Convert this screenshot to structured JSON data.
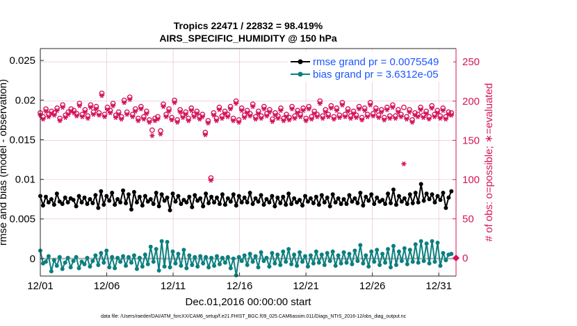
{
  "chart_data": {
    "type": "line",
    "title": "Tropics 22471 / 22832 = 98.419%",
    "subtitle": "AIRS_SPECIFIC_HUMIDITY @ 150 hPa",
    "xlabel": "Dec.01,2016 00:00:00 start",
    "ylabel": "rmse and bias (model - observation)",
    "y2label": "# of obs: o=possible; ∗=evaluated",
    "footnote": "data file: /Users/raeder/DAI/ATM_forcXX/CAM6_setup/f.e21.FHIST_BGC.f09_025.CAM6assim.011/Diags_NTrS_2016-12/obs_diag_output.nc",
    "xlim": [
      1,
      32.3
    ],
    "ylim": [
      -0.0022,
      0.0265
    ],
    "y2lim": [
      -23,
      267
    ],
    "x_ticks": [
      1,
      6,
      11,
      16,
      21,
      26,
      31
    ],
    "x_ticklabels": [
      "12/01",
      "12/06",
      "12/11",
      "12/16",
      "12/21",
      "12/26",
      "12/31"
    ],
    "y_ticks": [
      0,
      0.005,
      0.01,
      0.015,
      0.02,
      0.025
    ],
    "y_ticklabels": [
      "0",
      "0.005",
      "0.01",
      "0.015",
      "0.02",
      "0.025"
    ],
    "y2_ticks": [
      0,
      50,
      100,
      150,
      200,
      250
    ],
    "y2_ticklabels": [
      "0",
      "50",
      "100",
      "150",
      "200",
      "250"
    ],
    "grid": true,
    "legend_position": "top-right",
    "colors": {
      "rmse": "#000000",
      "bias": "#0b7f7f",
      "counts": "#d4145a",
      "zero_line": "#b4b4b4",
      "legend_text": "#1a56ff",
      "grid": "#e6b8c6"
    },
    "series": [
      {
        "name": "rmse grand pr = 0.0075549",
        "values": [
          0.0079,
          0.0067,
          0.0078,
          0.0071,
          0.0075,
          0.0068,
          0.0082,
          0.0072,
          0.0069,
          0.0077,
          0.0071,
          0.0076,
          0.0074,
          0.0066,
          0.0079,
          0.0071,
          0.0077,
          0.0069,
          0.0075,
          0.007,
          0.008,
          0.0064,
          0.0085,
          0.0068,
          0.0079,
          0.0073,
          0.0083,
          0.0068,
          0.0075,
          0.0071,
          0.0086,
          0.007,
          0.0081,
          0.0062,
          0.0084,
          0.0071,
          0.0078,
          0.0067,
          0.0079,
          0.0072,
          0.0075,
          0.0069,
          0.0083,
          0.0066,
          0.0081,
          0.0073,
          0.0077,
          0.0061,
          0.0082,
          0.0072,
          0.0079,
          0.0069,
          0.0074,
          0.0071,
          0.0078,
          0.0065,
          0.008,
          0.0073,
          0.0076,
          0.0066,
          0.0082,
          0.007,
          0.0078,
          0.0071,
          0.0077,
          0.0069,
          0.0081,
          0.0068,
          0.0076,
          0.0072,
          0.0081,
          0.0067,
          0.0079,
          0.0071,
          0.0077,
          0.0071,
          0.0083,
          0.0069,
          0.0076,
          0.0072,
          0.008,
          0.0068,
          0.0075,
          0.0071,
          0.0079,
          0.0066,
          0.0077,
          0.007,
          0.0078,
          0.0068,
          0.0082,
          0.0069,
          0.0076,
          0.0071,
          0.0074,
          0.0067,
          0.0079,
          0.0072,
          0.0076,
          0.007,
          0.0078,
          0.0068,
          0.008,
          0.0071,
          0.0077,
          0.0066,
          0.0081,
          0.0071,
          0.0076,
          0.0069,
          0.0075,
          0.0069,
          0.008,
          0.0072,
          0.0076,
          0.007,
          0.0083,
          0.0067,
          0.0078,
          0.0073,
          0.0081,
          0.0069,
          0.0077,
          0.0072,
          0.0074,
          0.0069,
          0.0082,
          0.007,
          0.0087,
          0.0068,
          0.0079,
          0.0072,
          0.0076,
          0.0069,
          0.0081,
          0.007,
          0.0083,
          0.0071,
          0.0094,
          0.0073,
          0.0082,
          0.0075,
          0.0081,
          0.0071,
          0.0079,
          0.0074,
          0.0083,
          0.0064,
          0.0077,
          0.0085
        ]
      },
      {
        "name": "bias grand pr = 3.6312e-05",
        "values": [
          0.001,
          -0.0006,
          -0.0004,
          0.0003,
          -0.0016,
          -0.0002,
          -0.0009,
          0.0002,
          -0.0013,
          -0.0005,
          0.0001,
          -0.0011,
          -0.0003,
          0.0002,
          -0.0012,
          -0.0004,
          -0.0007,
          0.0001,
          -0.001,
          -0.0003,
          0.0004,
          -0.0008,
          0.0007,
          -0.0005,
          0.001,
          -0.0011,
          0.0002,
          -0.0012,
          0.0001,
          -0.0004,
          0.0003,
          -0.0009,
          0.0002,
          -0.0005,
          0.0004,
          -0.0013,
          0.0001,
          -0.001,
          0.0005,
          -0.0007,
          0.0015,
          -0.0004,
          0.0012,
          -0.0015,
          0.0022,
          -0.001,
          0.0021,
          -0.0011,
          0.0009,
          -0.0006,
          0.0006,
          -0.0009,
          0.0011,
          -0.0012,
          0.0004,
          -0.0008,
          0.0002,
          -0.001,
          0.0003,
          -0.0006,
          0.0002,
          -0.0011,
          0.0001,
          -0.0009,
          0.0003,
          -0.0007,
          0.0001,
          -0.0005,
          0.0002,
          -0.0012,
          0.0,
          -0.0021,
          0.0002,
          -0.0003,
          0.0004,
          -0.0008,
          0.0006,
          -0.0004,
          0.0003,
          -0.0011,
          0.0008,
          -0.0003,
          0.0001,
          -0.001,
          0.0007,
          -0.0006,
          0.0005,
          -0.0008,
          0.0009,
          -0.0004,
          0.0012,
          -0.0007,
          0.0005,
          -0.0009,
          0.0008,
          -0.0004,
          0.0003,
          -0.001,
          0.0004,
          -0.0006,
          0.0009,
          -0.0005,
          0.0005,
          -0.0008,
          0.0007,
          -0.0003,
          0.0009,
          -0.0009,
          0.0004,
          -0.0006,
          0.0008,
          -0.0005,
          0.0006,
          -0.0007,
          0.001,
          -0.0003,
          0.0017,
          -0.0006,
          0.0004,
          -0.001,
          0.0009,
          -0.0004,
          0.0011,
          -0.0008,
          0.0006,
          -0.0005,
          0.0012,
          -0.0011,
          0.0016,
          -0.0008,
          0.0009,
          -0.0003,
          0.0013,
          -0.0007,
          0.0011,
          -0.0004,
          0.0018,
          -0.0005,
          0.0022,
          -0.0003,
          0.0019,
          -0.0006,
          0.0022,
          -0.0004,
          0.002,
          -0.0009,
          0.0007,
          -0.0002,
          0.0005,
          0.0006
        ]
      }
    ],
    "obs_counts": {
      "possible": [
        185,
        180,
        190,
        183,
        187,
        185,
        191,
        178,
        195,
        182,
        186,
        190,
        188,
        184,
        197,
        183,
        189,
        181,
        195,
        186,
        193,
        185,
        210,
        183,
        192,
        188,
        197,
        182,
        186,
        180,
        201,
        186,
        205,
        183,
        190,
        178,
        193,
        180,
        187,
        176,
        163,
        178,
        180,
        162,
        196,
        183,
        190,
        179,
        201,
        176,
        189,
        182,
        186,
        178,
        191,
        183,
        187,
        180,
        183,
        160,
        175,
        102,
        185,
        178,
        192,
        181,
        187,
        183,
        193,
        178,
        200,
        176,
        191,
        182,
        188,
        184,
        196,
        180,
        187,
        181,
        193,
        184,
        189,
        177,
        185,
        181,
        191,
        178,
        183,
        179,
        193,
        181,
        188,
        183,
        191,
        178,
        193,
        180,
        187,
        183,
        200,
        181,
        189,
        183,
        194,
        180,
        191,
        182,
        198,
        183,
        190,
        181,
        187,
        182,
        193,
        179,
        191,
        183,
        198,
        184,
        191,
        182,
        189,
        179,
        192,
        181,
        195,
        181,
        189,
        183,
        192,
        180,
        189,
        176,
        185,
        183,
        192,
        182,
        187,
        180,
        194,
        183,
        188,
        181,
        191,
        180,
        186,
        185
      ],
      "evaluated": [
        182,
        177,
        187,
        180,
        184,
        182,
        188,
        175,
        192,
        179,
        183,
        187,
        185,
        181,
        194,
        180,
        186,
        178,
        192,
        183,
        190,
        182,
        207,
        180,
        189,
        185,
        194,
        179,
        183,
        177,
        198,
        183,
        202,
        180,
        187,
        175,
        190,
        177,
        184,
        173,
        156,
        175,
        177,
        158,
        193,
        180,
        187,
        176,
        198,
        173,
        186,
        179,
        183,
        175,
        188,
        180,
        184,
        177,
        180,
        157,
        172,
        99,
        182,
        175,
        189,
        178,
        184,
        180,
        190,
        175,
        197,
        173,
        188,
        179,
        185,
        181,
        193,
        177,
        184,
        178,
        190,
        181,
        186,
        174,
        182,
        178,
        188,
        175,
        180,
        176,
        190,
        178,
        185,
        180,
        188,
        175,
        190,
        177,
        184,
        180,
        197,
        178,
        186,
        180,
        191,
        177,
        188,
        179,
        195,
        180,
        187,
        178,
        184,
        179,
        190,
        176,
        188,
        180,
        195,
        181,
        188,
        179,
        186,
        176,
        189,
        178,
        192,
        178,
        186,
        180,
        120,
        177,
        186,
        173,
        182,
        180,
        189,
        179,
        184,
        177,
        191,
        180,
        185,
        178,
        188,
        177,
        183,
        182
      ]
    }
  }
}
